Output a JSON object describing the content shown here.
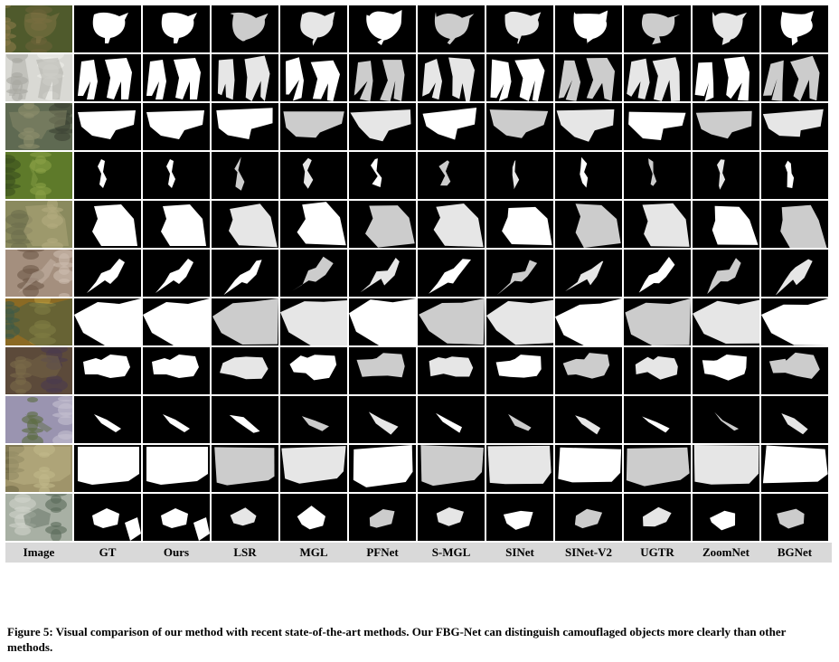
{
  "columns": [
    "Image",
    "GT",
    "Ours",
    "LSR",
    "MGL",
    "PFNet",
    "S-MGL",
    "SINet",
    "SINet-V2",
    "UGTR",
    "ZoomNet",
    "BGNet"
  ],
  "caption": "Figure 5: Visual comparison of our method with recent state-of-the-art methods. Our FBG-Net can distinguish camouflaged objects more clearly than other methods.",
  "rows": [
    {
      "scene": "bird-on-grass",
      "photo_colors": [
        "#4f5a2c",
        "#8a7a4a",
        "#6a6238"
      ]
    },
    {
      "scene": "snow-owl",
      "photo_colors": [
        "#d9d9d4",
        "#a7a7a0",
        "#eeeeea"
      ]
    },
    {
      "scene": "crocodile",
      "photo_colors": [
        "#5f6a52",
        "#8d8f6c",
        "#3c4334"
      ]
    },
    {
      "scene": "grasshopper",
      "photo_colors": [
        "#5e7a2a",
        "#8aa046",
        "#3b4e1e"
      ]
    },
    {
      "scene": "seabed-fish",
      "photo_colors": [
        "#8a8a5e",
        "#b3ab7e",
        "#6d6e4c"
      ]
    },
    {
      "scene": "bird-on-branch",
      "photo_colors": [
        "#a48f7e",
        "#cdbdaf",
        "#6f5a4a"
      ]
    },
    {
      "scene": "leaf-fish",
      "photo_colors": [
        "#8b6a24",
        "#3c5a4a",
        "#b79a3e"
      ]
    },
    {
      "scene": "sea-frog",
      "photo_colors": [
        "#5c4a3a",
        "#7a6a4a",
        "#4a3b4e"
      ]
    },
    {
      "scene": "heron-reeds",
      "photo_colors": [
        "#9a94b0",
        "#5a6a3e",
        "#c4c0d0"
      ]
    },
    {
      "scene": "moss-insect",
      "photo_colors": [
        "#9f946a",
        "#c2b98a",
        "#6e6846"
      ]
    },
    {
      "scene": "bird-in-water",
      "photo_colors": [
        "#a8b0a4",
        "#5a6a5a",
        "#d0d4cc"
      ]
    }
  ]
}
